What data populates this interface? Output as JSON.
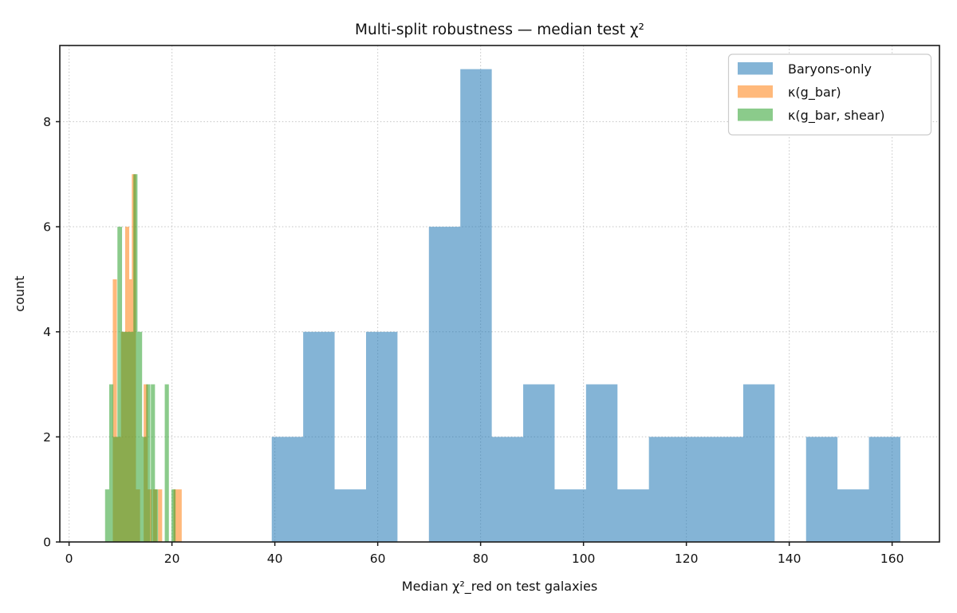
{
  "chart_data": {
    "type": "histogram",
    "title": "Multi-split robustness — median test χ²",
    "xlabel": "Median χ²_red on test galaxies",
    "ylabel": "count",
    "xlim": [
      -1.8,
      169.2
    ],
    "ylim": [
      0,
      9.45
    ],
    "xticks": [
      0,
      20,
      40,
      60,
      80,
      100,
      120,
      140,
      160
    ],
    "yticks": [
      0,
      2,
      4,
      6,
      8
    ],
    "grid": {
      "visible": true,
      "style": "dotted",
      "color": "#c9c9c9"
    },
    "bar_alpha": 0.55,
    "legend": {
      "position": "upper-right"
    },
    "series": [
      {
        "name": "Baryons-only",
        "color": "#1f77b4",
        "bars": [
          [
            39.4,
            45.51,
            2
          ],
          [
            45.51,
            51.62,
            4
          ],
          [
            51.62,
            57.73,
            1
          ],
          [
            57.73,
            63.84,
            4
          ],
          [
            63.84,
            69.95,
            0
          ],
          [
            69.95,
            76.06,
            6
          ],
          [
            76.06,
            82.17,
            9
          ],
          [
            82.17,
            88.28,
            2
          ],
          [
            88.28,
            94.39,
            3
          ],
          [
            94.39,
            100.5,
            1
          ],
          [
            100.5,
            106.61,
            3
          ],
          [
            106.61,
            112.72,
            1
          ],
          [
            112.72,
            118.83,
            2
          ],
          [
            118.83,
            124.94,
            2
          ],
          [
            124.94,
            131.05,
            2
          ],
          [
            131.05,
            137.16,
            3
          ],
          [
            137.16,
            143.27,
            0
          ],
          [
            143.27,
            149.38,
            2
          ],
          [
            149.38,
            155.49,
            1
          ],
          [
            155.49,
            161.6,
            2
          ]
        ]
      },
      {
        "name": "κ(g_bar)",
        "color": "#ff7f0e",
        "bars": [
          [
            8.5,
            9.3,
            5
          ],
          [
            9.3,
            10.1,
            2
          ],
          [
            10.1,
            10.9,
            4
          ],
          [
            10.9,
            11.7,
            6
          ],
          [
            11.7,
            12.5,
            5
          ],
          [
            12.2,
            13.0,
            7
          ],
          [
            13.0,
            13.8,
            1
          ],
          [
            14.5,
            15.3,
            3
          ],
          [
            15.3,
            16.1,
            1
          ],
          [
            16.3,
            17.1,
            1
          ],
          [
            17.3,
            18.1,
            1
          ],
          [
            20.3,
            21.1,
            1
          ],
          [
            21.1,
            21.9,
            1
          ]
        ]
      },
      {
        "name": "κ(g_bar, shear)",
        "color": "#2ca02c",
        "bars": [
          [
            7.0,
            7.8,
            1
          ],
          [
            7.8,
            8.6,
            3
          ],
          [
            8.6,
            9.4,
            2
          ],
          [
            9.4,
            10.3,
            6
          ],
          [
            10.3,
            11.1,
            4
          ],
          [
            11.1,
            11.9,
            4
          ],
          [
            11.9,
            12.7,
            4
          ],
          [
            12.5,
            13.3,
            7
          ],
          [
            13.3,
            14.2,
            4
          ],
          [
            14.2,
            15.0,
            2
          ],
          [
            15.0,
            15.8,
            3
          ],
          [
            15.9,
            16.7,
            3
          ],
          [
            16.7,
            17.3,
            1
          ],
          [
            18.6,
            19.4,
            3
          ],
          [
            19.9,
            20.7,
            1
          ]
        ]
      }
    ]
  }
}
